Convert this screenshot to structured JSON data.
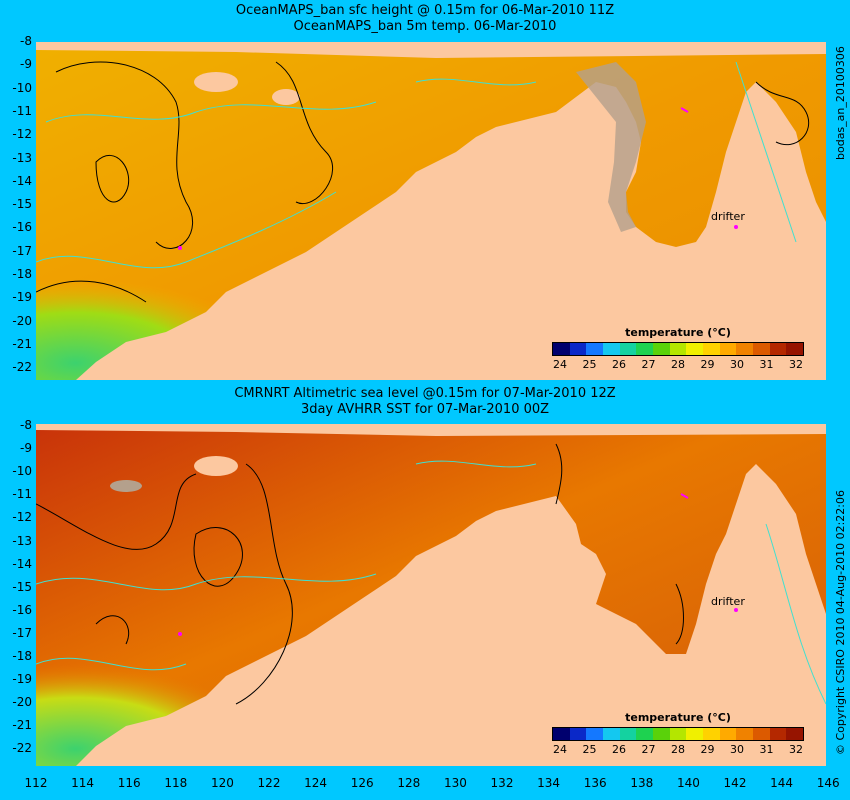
{
  "top_panel": {
    "title_line1": "OceanMAPS_ban sfc height @ 0.15m for 06-Mar-2010 11Z",
    "title_line2": "OceanMAPS_ban 5m temp. 06-Mar-2010",
    "side_text": "bodas_an_20100306",
    "drifter_label": "drifter"
  },
  "bottom_panel": {
    "title_line1": "CMRNRT Altimetric sea level  @0.15m  for 07-Mar-2010 12Z",
    "title_line2": "3day AVHRR SST for 07-Mar-2010 00Z",
    "side_text": "© Copyright CSIRO 2010    04-Aug-2010 02:22:06",
    "drifter_label": "drifter"
  },
  "colorbar": {
    "title": "temperature (°C)",
    "ticks": [
      "24",
      "25",
      "26",
      "27",
      "28",
      "29",
      "30",
      "31",
      "32"
    ],
    "colors": [
      "#00006e",
      "#0a28c8",
      "#1478ff",
      "#14c8f0",
      "#14d2a0",
      "#1ed250",
      "#5ad20a",
      "#b4e600",
      "#f0f000",
      "#ffd200",
      "#ffaa00",
      "#f08200",
      "#dc5a00",
      "#b42800",
      "#961400"
    ]
  },
  "y_axis_labels": [
    "-8",
    "-9",
    "-10",
    "-11",
    "-12",
    "-13",
    "-14",
    "-15",
    "-16",
    "-17",
    "-18",
    "-19",
    "-20",
    "-21",
    "-22"
  ],
  "x_axis_labels": [
    "112",
    "114",
    "116",
    "118",
    "120",
    "122",
    "124",
    "126",
    "128",
    "130",
    "132",
    "134",
    "136",
    "138",
    "140",
    "142",
    "144",
    "146"
  ],
  "colors": {
    "background": "#00c8ff",
    "land": "#fcc8a0",
    "sea_warm": "#f0a000",
    "sea_hot": "#c83c0a",
    "contour_cyan": "#40e0d0",
    "drifter": "#ff00ff"
  }
}
